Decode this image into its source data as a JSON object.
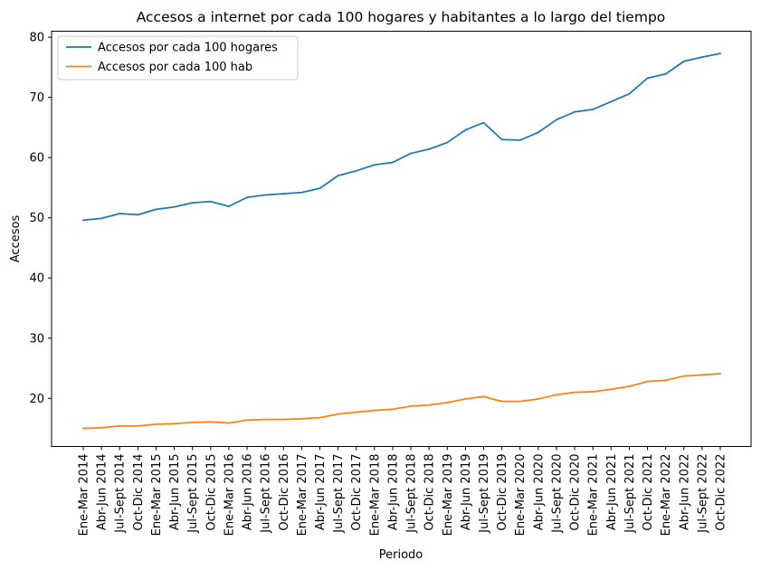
{
  "chart_data": {
    "type": "line",
    "title": "Accesos a internet por cada 100 hogares y habitantes a lo largo del tiempo",
    "xlabel": "Periodo",
    "ylabel": "Accesos",
    "ylim": [
      12,
      81
    ],
    "yticks": [
      20,
      30,
      40,
      50,
      60,
      70,
      80
    ],
    "grid": false,
    "legend_position": "upper-left",
    "categories": [
      "Ene-Mar 2014",
      "Abr-Jun 2014",
      "Jul-Sept 2014",
      "Oct-Dic 2014",
      "Ene-Mar 2015",
      "Abr-Jun 2015",
      "Jul-Sept 2015",
      "Oct-Dic 2015",
      "Ene-Mar 2016",
      "Abr-Jun 2016",
      "Jul-Sept 2016",
      "Oct-Dic 2016",
      "Ene-Mar 2017",
      "Abr-Jun 2017",
      "Jul-Sept 2017",
      "Oct-Dic 2017",
      "Ene-Mar 2018",
      "Abr-Jun 2018",
      "Jul-Sept 2018",
      "Oct-Dic 2018",
      "Ene-Mar 2019",
      "Abr-Jun 2019",
      "Jul-Sept 2019",
      "Oct-Dic 2019",
      "Ene-Mar 2020",
      "Abr-Jun 2020",
      "Jul-Sept 2020",
      "Oct-Dic 2020",
      "Ene-Mar 2021",
      "Abr-Jun 2021",
      "Jul-Sept 2021",
      "Oct-Dic 2021",
      "Ene-Mar 2022",
      "Abr-Jun 2022",
      "Jul-Sept 2022",
      "Oct-Dic 2022"
    ],
    "series": [
      {
        "name": "Accesos por cada 100 hogares",
        "color": "#1f77b4",
        "values": [
          49.6,
          49.9,
          50.7,
          50.5,
          51.4,
          51.8,
          52.5,
          52.7,
          51.9,
          53.4,
          53.8,
          54.0,
          54.2,
          54.9,
          57.0,
          57.8,
          58.8,
          59.2,
          60.7,
          61.4,
          62.5,
          64.6,
          65.8,
          63.0,
          62.9,
          64.2,
          66.3,
          67.6,
          68.0,
          69.3,
          70.6,
          73.2,
          73.9,
          76.0,
          76.7,
          77.3
        ]
      },
      {
        "name": "Accesos por cada 100 hab",
        "color": "#ff7f0e",
        "values": [
          15.0,
          15.1,
          15.4,
          15.4,
          15.7,
          15.8,
          16.0,
          16.1,
          15.9,
          16.4,
          16.5,
          16.5,
          16.6,
          16.8,
          17.4,
          17.7,
          18.0,
          18.2,
          18.7,
          18.9,
          19.3,
          19.9,
          20.3,
          19.5,
          19.5,
          19.9,
          20.6,
          21.0,
          21.1,
          21.5,
          22.0,
          22.8,
          23.0,
          23.7,
          23.9,
          24.1
        ]
      }
    ]
  }
}
